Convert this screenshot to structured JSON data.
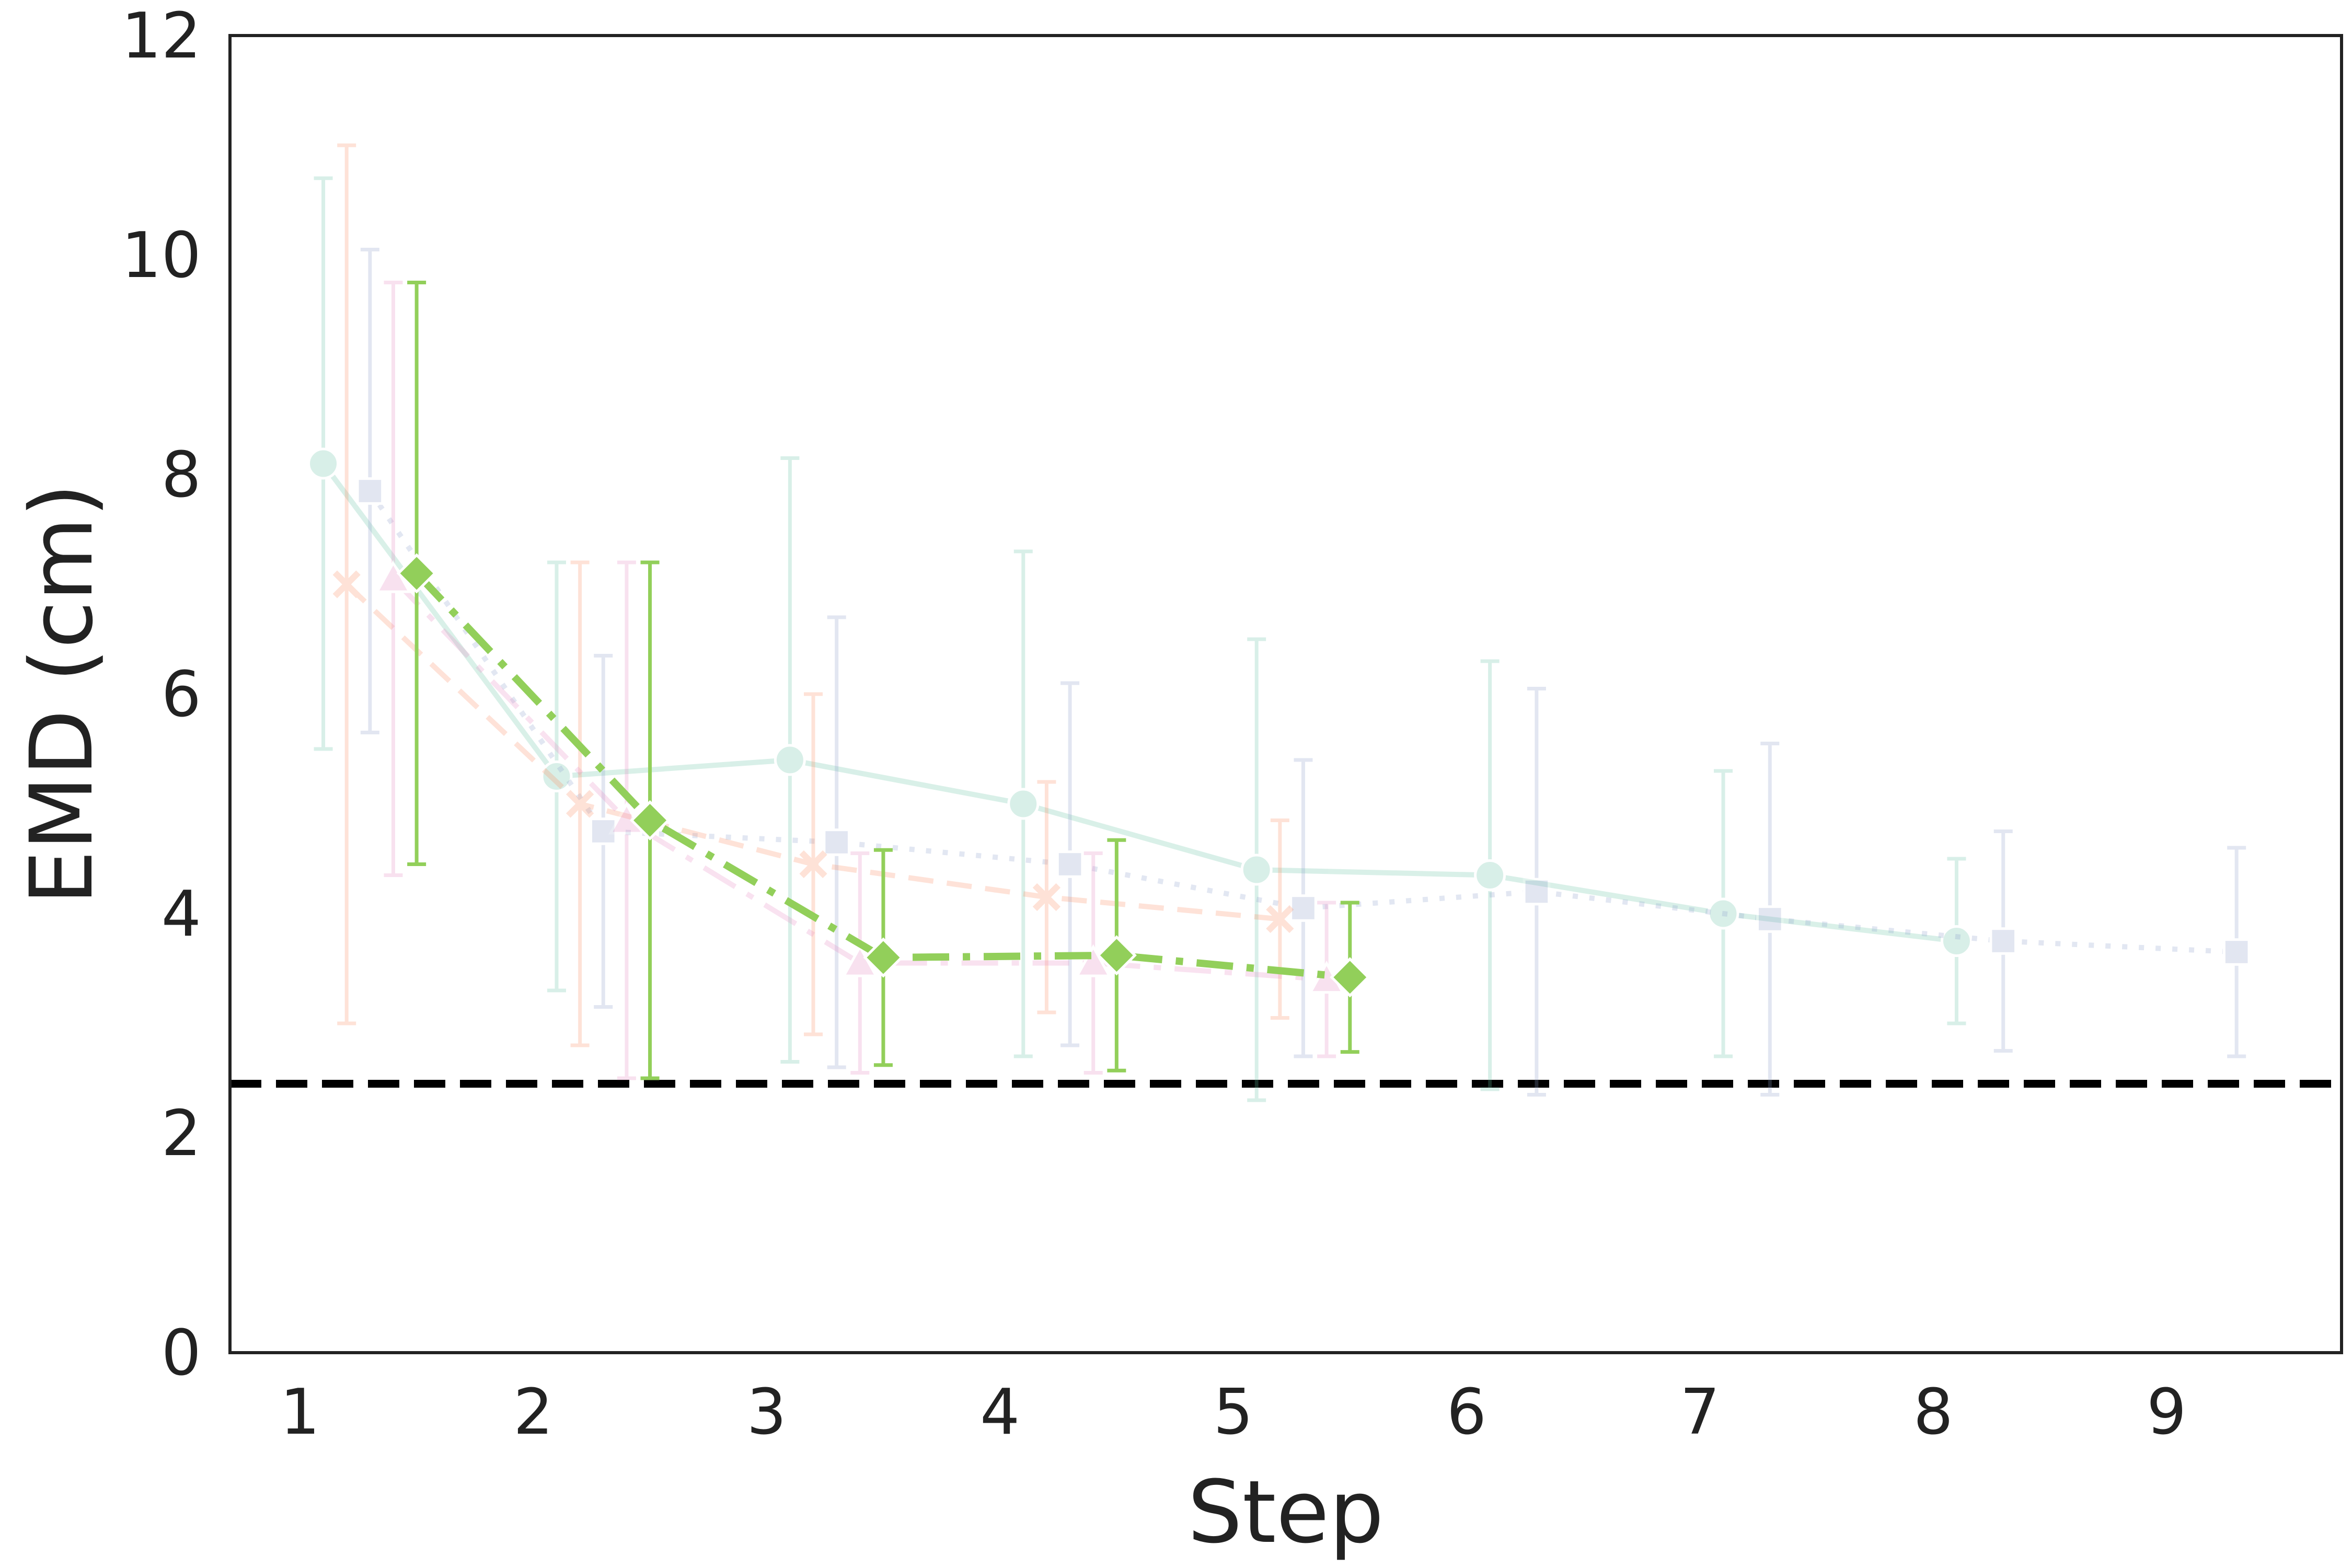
{
  "chart_data": {
    "type": "line",
    "xlabel": "Step",
    "ylabel": "EMD (cm)",
    "xlim": [
      0.7,
      9.75
    ],
    "ylim": [
      0,
      12
    ],
    "x_ticks": [
      1,
      2,
      3,
      4,
      5,
      6,
      7,
      8,
      9
    ],
    "y_ticks": [
      0,
      2,
      4,
      6,
      8,
      10,
      12
    ],
    "grid": false,
    "legend": "none",
    "reference_line": {
      "y": 2.45,
      "color": "#000000",
      "style": "dashed"
    },
    "series": [
      {
        "color": "#66c2a5",
        "marker": "circle",
        "line_style": "solid",
        "opacity": 0.25,
        "x": [
          1.1,
          2.1,
          3.1,
          4.1,
          5.1,
          6.1,
          7.1,
          8.1
        ],
        "y": [
          8.1,
          5.25,
          5.4,
          5.0,
          4.4,
          4.35,
          4.0,
          3.75
        ],
        "err": [
          2.6,
          1.95,
          2.75,
          2.3,
          2.1,
          1.95,
          1.3,
          0.75
        ]
      },
      {
        "color": "#8da0cb",
        "marker": "square",
        "line_style": "dotted",
        "opacity": 0.25,
        "x": [
          1.3,
          2.3,
          3.3,
          4.3,
          5.3,
          6.3,
          7.3,
          8.3,
          9.3
        ],
        "y": [
          7.85,
          4.75,
          4.65,
          4.45,
          4.05,
          4.2,
          3.95,
          3.75,
          3.65
        ],
        "err": [
          2.2,
          1.6,
          2.05,
          1.65,
          1.35,
          1.85,
          1.6,
          1.0,
          0.95
        ]
      },
      {
        "color": "#fc8d62",
        "marker": "x",
        "line_style": "dashed",
        "opacity": 0.25,
        "x": [
          1.2,
          2.2,
          3.2,
          4.2,
          5.2
        ],
        "y": [
          7.0,
          5.0,
          4.45,
          4.15,
          3.95
        ],
        "err": [
          4.0,
          2.2,
          1.55,
          1.05,
          0.9
        ]
      },
      {
        "color": "#e78ac3",
        "marker": "triangle",
        "line_style": "dashdot",
        "opacity": 0.25,
        "x": [
          1.4,
          2.4,
          3.4,
          4.4,
          5.4
        ],
        "y": [
          7.05,
          4.85,
          3.55,
          3.55,
          3.4
        ],
        "err": [
          2.7,
          2.35,
          1.0,
          1.0,
          0.7
        ]
      },
      {
        "color": "#92cf5a",
        "marker": "diamond",
        "line_style": "dashdot",
        "opacity": 1.0,
        "x": [
          1.5,
          2.5,
          3.5,
          4.5,
          5.5
        ],
        "y": [
          7.1,
          4.85,
          3.6,
          3.62,
          3.42
        ],
        "err": [
          2.65,
          2.35,
          0.98,
          1.05,
          0.68
        ]
      }
    ]
  }
}
